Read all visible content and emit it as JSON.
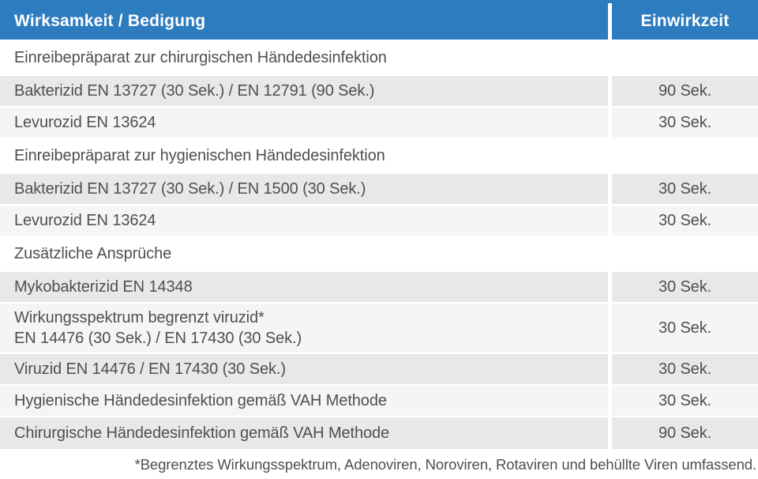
{
  "header": {
    "col_main": "Wirksamkeit / Bedigung",
    "col_time": "Einwirkzeit"
  },
  "table": {
    "rows": [
      {
        "type": "section",
        "text": "Einreibepräparat zur chirurgischen Händedesinfektion"
      },
      {
        "type": "data",
        "shade": "gray",
        "text": "Bakterizid EN 13727 (30 Sek.) / EN 12791 (90 Sek.)",
        "time": "90 Sek."
      },
      {
        "type": "data",
        "shade": "light",
        "text": "Levurozid EN 13624",
        "time": "30 Sek."
      },
      {
        "type": "section",
        "text": "Einreibepräparat zur hygienischen Händedesinfektion"
      },
      {
        "type": "data",
        "shade": "gray",
        "text": "Bakterizid EN 13727 (30 Sek.) / EN 1500 (30 Sek.)",
        "time": "30 Sek."
      },
      {
        "type": "data",
        "shade": "light",
        "text": "Levurozid EN 13624",
        "time": "30 Sek."
      },
      {
        "type": "section",
        "text": "Zusätzliche Ansprüche"
      },
      {
        "type": "data",
        "shade": "gray",
        "text": "Mykobakterizid EN 14348",
        "time": "30 Sek."
      },
      {
        "type": "data",
        "shade": "light",
        "text_line1": "Wirkungsspektrum begrenzt viruzid*",
        "text_line2": "EN 14476 (30 Sek.) / EN 17430 (30 Sek.)",
        "time": "30 Sek."
      },
      {
        "type": "data",
        "shade": "gray",
        "text": "Viruzid EN 14476 / EN 17430 (30 Sek.)",
        "time": "30 Sek."
      },
      {
        "type": "data",
        "shade": "light",
        "text": "Hygienische Händedesinfektion gemäß VAH Methode",
        "time": "30 Sek."
      },
      {
        "type": "data",
        "shade": "gray",
        "text": "Chirurgische Händedesinfektion gemäß VAH Methode",
        "time": "90 Sek."
      }
    ]
  },
  "footnote": "*Begrenztes Wirkungsspektrum, Adenoviren, Noroviren, Rotaviren und behüllte Viren umfassend.",
  "colors": {
    "header_blue": "#2e7cc0",
    "row_gray": "#e8e8e6",
    "row_light": "#f5f5f3",
    "row_white": "#ffffff",
    "text": "#4f4f4f",
    "header_text": "#ffffff"
  }
}
